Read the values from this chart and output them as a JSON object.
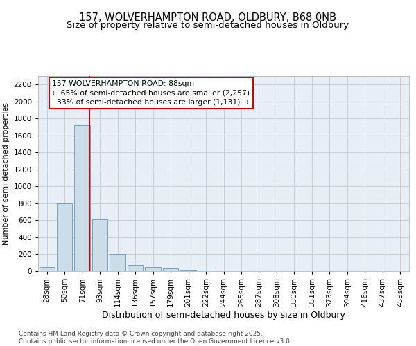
{
  "title_line1": "157, WOLVERHAMPTON ROAD, OLDBURY, B68 0NB",
  "title_line2": "Size of property relative to semi-detached houses in Oldbury",
  "xlabel": "Distribution of semi-detached houses by size in Oldbury",
  "ylabel": "Number of semi-detached properties",
  "categories": [
    "28sqm",
    "50sqm",
    "71sqm",
    "93sqm",
    "114sqm",
    "136sqm",
    "157sqm",
    "179sqm",
    "201sqm",
    "222sqm",
    "244sqm",
    "265sqm",
    "287sqm",
    "308sqm",
    "330sqm",
    "351sqm",
    "373sqm",
    "394sqm",
    "416sqm",
    "437sqm",
    "459sqm"
  ],
  "values": [
    50,
    800,
    1720,
    610,
    205,
    75,
    45,
    30,
    15,
    5,
    0,
    0,
    0,
    0,
    0,
    0,
    0,
    0,
    0,
    0,
    0
  ],
  "bar_color": "#ccdce9",
  "bar_edge_color": "#6699bb",
  "red_line_x": 2.42,
  "annotation_text": "157 WOLVERHAMPTON ROAD: 88sqm\n← 65% of semi-detached houses are smaller (2,257)\n  33% of semi-detached houses are larger (1,131) →",
  "annotation_box_color": "#ffffff",
  "annotation_box_edge_color": "#cc0000",
  "red_line_color": "#cc0000",
  "ylim": [
    0,
    2300
  ],
  "yticks": [
    0,
    200,
    400,
    600,
    800,
    1000,
    1200,
    1400,
    1600,
    1800,
    2000,
    2200
  ],
  "grid_color": "#c8c8c8",
  "background_color": "#e8eef5",
  "footer_text": "Contains HM Land Registry data © Crown copyright and database right 2025.\nContains public sector information licensed under the Open Government Licence v3.0.",
  "title_fontsize": 10.5,
  "subtitle_fontsize": 9.5,
  "tick_fontsize": 7.5,
  "xlabel_fontsize": 9,
  "ylabel_fontsize": 8,
  "annotation_fontsize": 7.8,
  "footer_fontsize": 6.5
}
